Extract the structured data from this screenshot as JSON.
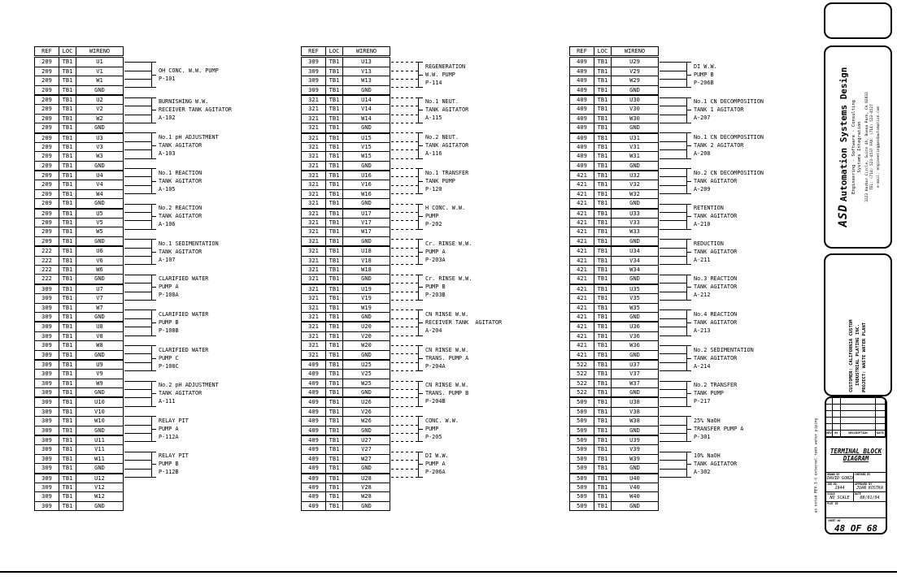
{
  "tables": [
    {
      "headers": [
        "REF",
        "LOC",
        "WIRENO"
      ],
      "connector_style": "solid",
      "groups": [
        {
          "ref": "209",
          "loc": "TB1",
          "wires": [
            "U1",
            "V1",
            "W1",
            "GND"
          ],
          "label": [
            "OH CONC. W.W. PUMP",
            "P-101"
          ]
        },
        {
          "ref": "209",
          "loc": "TB1",
          "wires": [
            "U2",
            "V2",
            "W2",
            "GND"
          ],
          "label": [
            "BURNISHING W.W.",
            "RECEIVER TANK AGITATOR",
            "A-102"
          ]
        },
        {
          "ref": "209",
          "loc": "TB1",
          "wires": [
            "U3",
            "V3",
            "W3",
            "GND"
          ],
          "label": [
            "No.1 pH ADJUSTMENT",
            "TANK AGITATOR",
            "A-103"
          ]
        },
        {
          "ref": "209",
          "loc": "TB1",
          "wires": [
            "U4",
            "V4",
            "W4",
            "GND"
          ],
          "label": [
            "No.1 REACTION",
            "TANK AGITATOR",
            "A-105"
          ]
        },
        {
          "ref": "209",
          "loc": "TB1",
          "wires": [
            "U5",
            "V5",
            "W5",
            "GND"
          ],
          "label": [
            "No.2 REACTION",
            "TANK AGITATOR",
            "A-106"
          ]
        },
        {
          "ref": "222",
          "loc": "TB1",
          "wires": [
            "U6",
            "V6",
            "W6",
            "GND"
          ],
          "label": [
            "No.1 SEDIMENTATION",
            "TANK AGITATOR",
            "A-107"
          ]
        },
        {
          "ref": "309",
          "loc": "TB1",
          "wires": [
            "U7",
            "V7",
            "W7",
            "GND"
          ],
          "label": [
            "CLARIFIED WATER",
            "PUMP A",
            "P-108A"
          ]
        },
        {
          "ref": "309",
          "loc": "TB1",
          "wires": [
            "U8",
            "V8",
            "W8",
            "GND"
          ],
          "label": [
            "CLARIFIED WATER",
            "PUMP B",
            "P-108B"
          ]
        },
        {
          "ref": "309",
          "loc": "TB1",
          "wires": [
            "U9",
            "V9",
            "W9",
            "GND"
          ],
          "label": [
            "CLARIFIED WATER",
            "PUMP C",
            "P-108C"
          ]
        },
        {
          "ref": "309",
          "loc": "TB1",
          "wires": [
            "U10",
            "V10",
            "W10",
            "GND"
          ],
          "label": [
            "No.2 pH ADJUSTMENT",
            "TANK AGITATOR",
            "A-111"
          ]
        },
        {
          "ref": "309",
          "loc": "TB1",
          "wires": [
            "U11",
            "V11",
            "W11",
            "GND"
          ],
          "label": [
            "RELAY PIT",
            "PUMP A",
            "P-112A"
          ]
        },
        {
          "ref": "309",
          "loc": "TB1",
          "wires": [
            "U12",
            "V12",
            "W12",
            "GND"
          ],
          "label": [
            "RELAY PIT",
            "PUMP B",
            "P-112B"
          ]
        }
      ]
    },
    {
      "headers": [
        "REF",
        "LOC",
        "WIRENO"
      ],
      "connector_style": "dashed",
      "groups": [
        {
          "ref": "309",
          "loc": "TB1",
          "wires": [
            "U13",
            "V13",
            "W13",
            "GND"
          ],
          "label": [
            "REGENERATION",
            "W.W. PUMP",
            "P-114"
          ]
        },
        {
          "ref": "321",
          "loc": "TB1",
          "wires": [
            "U14",
            "V14",
            "W14",
            "GND"
          ],
          "label": [
            "No.1 NEUT.",
            "TANK AGITATOR",
            "A-115"
          ]
        },
        {
          "ref": "321",
          "loc": "TB1",
          "wires": [
            "U15",
            "V15",
            "W15",
            "GND"
          ],
          "label": [
            "No.2 NEUT.",
            "TANK AGITATOR",
            "A-116"
          ]
        },
        {
          "ref": "321",
          "loc": "TB1",
          "wires": [
            "U16",
            "V16",
            "W16",
            "GND"
          ],
          "label": [
            "No.1 TRANSFER",
            "TANK PUMP",
            "P-120"
          ]
        },
        {
          "ref": "321",
          "loc": "TB1",
          "wires": [
            "U17",
            "V17",
            "W17",
            "GND"
          ],
          "label": [
            "H CONC. W.W.",
            "PUMP",
            "P-202"
          ]
        },
        {
          "ref": "321",
          "loc": "TB1",
          "wires": [
            "U18",
            "V18",
            "W18",
            "GND"
          ],
          "label": [
            "Cr. RINSE W.W.",
            "PUMP A",
            "P-203A"
          ]
        },
        {
          "ref": "321",
          "loc": "TB1",
          "wires": [
            "U19",
            "V19",
            "W19",
            "GND"
          ],
          "label": [
            "Cr. RINSE W.W.",
            "PUMP B",
            "P-203B"
          ]
        },
        {
          "ref": "321",
          "loc": "TB1",
          "wires": [
            "U20",
            "V20",
            "W20",
            "GND"
          ],
          "label": [
            "CN RINSE W.W.",
            "RECEIVER TANK  AGITATOR",
            "A-204"
          ]
        },
        {
          "ref": "409",
          "loc": "TB1",
          "wires": [
            "U25",
            "V25",
            "W25",
            "GND"
          ],
          "label": [
            "CN RINSE W.W.",
            "TRANS. PUMP A",
            "P-204A"
          ]
        },
        {
          "ref": "409",
          "loc": "TB1",
          "wires": [
            "U26",
            "V26",
            "W26",
            "GND"
          ],
          "label": [
            "CN RINSE W.W.",
            "TRANS. PUMP B",
            "P-204B"
          ]
        },
        {
          "ref": "409",
          "loc": "TB1",
          "wires": [
            "U27",
            "V27",
            "W27",
            "GND"
          ],
          "label": [
            "CONC. W.W.",
            "PUMP",
            "P-205"
          ]
        },
        {
          "ref": "409",
          "loc": "TB1",
          "wires": [
            "U28",
            "V28",
            "W28",
            "GND"
          ],
          "label": [
            "DI W.W.",
            "PUMP A",
            "P-206A"
          ]
        }
      ]
    },
    {
      "headers": [
        "REF",
        "LOC",
        "WIRENO"
      ],
      "connector_style": "dashtail",
      "groups": [
        {
          "ref": "409",
          "loc": "TB1",
          "wires": [
            "U29",
            "V29",
            "W29",
            "GND"
          ],
          "label": [
            "DI W.W.",
            "PUMP B",
            "P-206B"
          ]
        },
        {
          "ref": "409",
          "loc": "TB1",
          "wires": [
            "U30",
            "V30",
            "W30",
            "GND"
          ],
          "label": [
            "No.1 CN DECOMPOSITION",
            "TANK 1 AGITATOR",
            "A-207"
          ]
        },
        {
          "ref": "409",
          "loc": "TB1",
          "wires": [
            "U31",
            "V31",
            "W31",
            "GND"
          ],
          "label": [
            "No.1 CN DECOMPOSITION",
            "TANK 2 AGITATOR",
            "A-208"
          ]
        },
        {
          "ref": "421",
          "loc": "TB1",
          "wires": [
            "U32",
            "V32",
            "W32",
            "GND"
          ],
          "label": [
            "No.2 CN DECOMPOSITION",
            "TANK AGITATOR",
            "A-209"
          ]
        },
        {
          "ref": "421",
          "loc": "TB1",
          "wires": [
            "U33",
            "V33",
            "W33",
            "GND"
          ],
          "label": [
            "RETENTION",
            "TANK AGITATOR",
            "A-210"
          ]
        },
        {
          "ref": "421",
          "loc": "TB1",
          "wires": [
            "U34",
            "V34",
            "W34",
            "GND"
          ],
          "label": [
            "REDUCTION",
            "TANK AGITATOR",
            "A-211"
          ]
        },
        {
          "ref": "421",
          "loc": "TB1",
          "wires": [
            "U35",
            "V35",
            "W35",
            "GND"
          ],
          "label": [
            "No.3 REACTION",
            "TANK AGITATOR",
            "A-212"
          ]
        },
        {
          "ref": "421",
          "loc": "TB1",
          "wires": [
            "U36",
            "V36",
            "W36",
            "GND"
          ],
          "label": [
            "No.4 REACTION",
            "TANK AGITATOR",
            "A-213"
          ]
        },
        {
          "ref": "522",
          "loc": "TB1",
          "wires": [
            "U37",
            "V37",
            "W37",
            "GND"
          ],
          "label": [
            "No.2 SEDIMENTATION",
            "TANK AGITATOR",
            "A-214"
          ]
        },
        {
          "ref": "509",
          "loc": "TB1",
          "wires": [
            "U38",
            "V38",
            "W38",
            "GND"
          ],
          "label": [
            "No.2 TRANSFER",
            "TANK PUMP",
            "P-217"
          ]
        },
        {
          "ref": "509",
          "loc": "TB1",
          "wires": [
            "U39",
            "V39",
            "W39",
            "GND"
          ],
          "label": [
            "25% NaOH",
            "TRANSFER PUMP A",
            "P-301"
          ]
        },
        {
          "ref": "509",
          "loc": "TB1",
          "wires": [
            "U40",
            "V40",
            "W40",
            "GND"
          ],
          "label": [
            "10% NaOH",
            "TANK AGITATOR",
            "A-302"
          ]
        }
      ]
    }
  ],
  "company": {
    "brand": "ASD",
    "brand_rest": "Automation Systems Design",
    "tagline": "Engineering - Software - Consulting",
    "tagline2": "Systems Integration",
    "address": "3223 Harbor Circle, Suite 4A, Buena Park, CA 92833",
    "phone": "TEL: (714) 523-4537        FAX: (714) 523-4527",
    "email": "e-mail: engineering@asdautomation.com"
  },
  "customer": {
    "line1": "CUSTOMER: CALIFORNIA CUSTOM",
    "line2": "INDUSTRIAL PLATING INC.",
    "line3": "PROJECT: WASTE WATER PLANT"
  },
  "title_block": {
    "title_line1": "TERMINAL BLOCK",
    "title_line2": "DIAGRAM",
    "rev_headers": [
      "REV",
      "BY",
      "DESCRIPTION",
      "DATE"
    ],
    "fields": {
      "drawn_by_label": "DRAWN BY",
      "drawn_by": "DAVID GONZALEZ",
      "checked_by_label": "CHECKED BY",
      "checked_by": "",
      "job_no_label": "JOB NO.",
      "job_no": "1944",
      "approved_by_label": "APPROVED BY",
      "approved_by": "JUAN KOSTKA",
      "scale_label": "SCALE",
      "scale": "NO SCALE",
      "date_label": "DATE",
      "date": "08/01/04",
      "plot_id_label": "PLOT ID",
      "sheet_label": "SHEET NO",
      "sheet": "48 OF 68"
    }
  },
  "margin_note": "as noted  REV.1-G  external tank water piping"
}
